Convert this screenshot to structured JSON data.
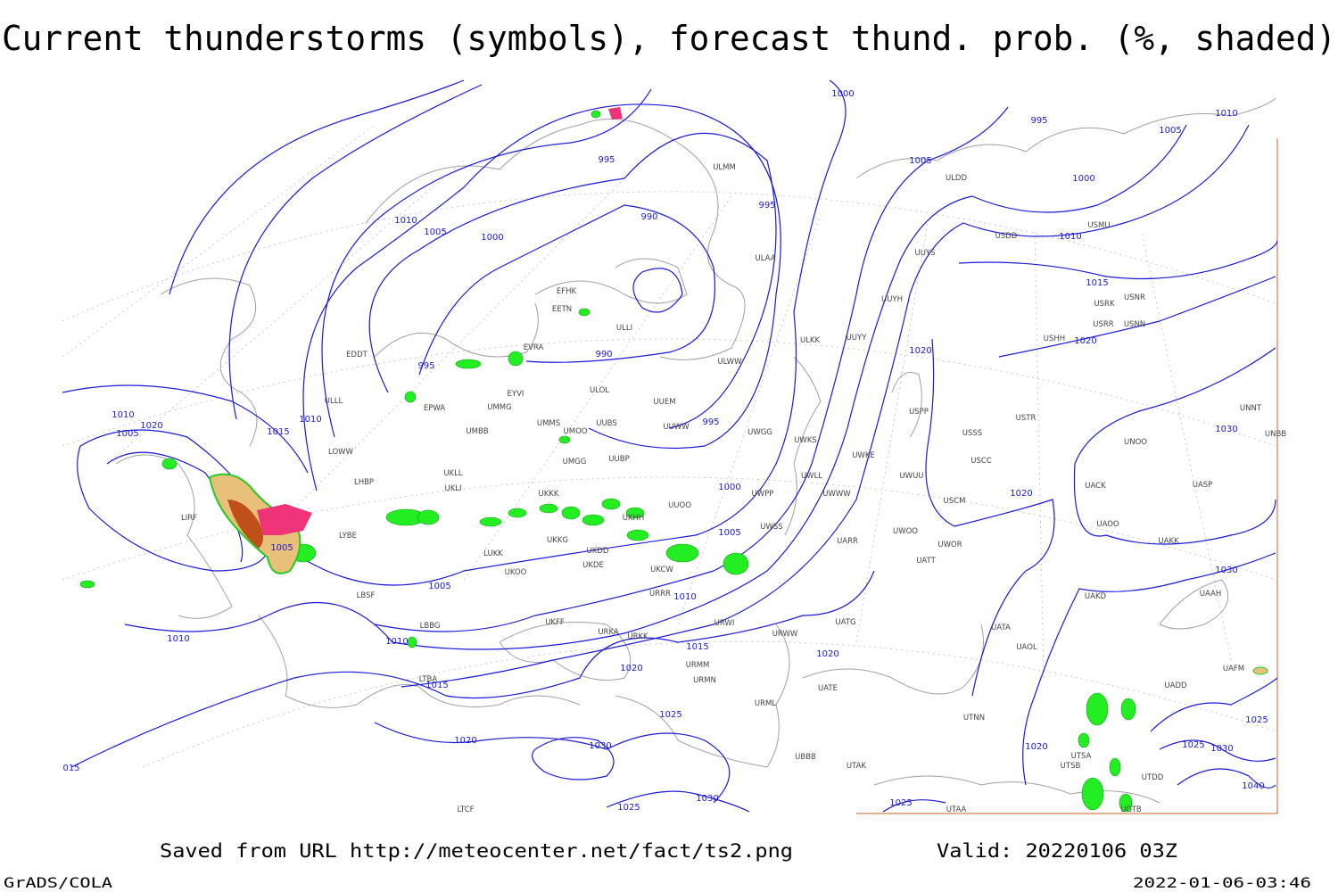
{
  "title": "Current thunderstorms (symbols), forecast thund. prob. (%, shaded)",
  "isobar_labels": [
    "1000",
    "995",
    "1010",
    "1005",
    "995",
    "1005",
    "1000",
    "1010",
    "1005",
    "1000",
    "995",
    "990",
    "1010",
    "1015",
    "1020",
    "1020",
    "995",
    "990",
    "995",
    "1010",
    "1020",
    "1005",
    "1015",
    "1010",
    "1000",
    "1020",
    "1030",
    "1005",
    "1005",
    "1005",
    "1010",
    "1030",
    "1010",
    "1010",
    "1015",
    "1020",
    "1015",
    "1020",
    "1025",
    "1020",
    "1030",
    "1020",
    "1025",
    "1030",
    "1030",
    "1025",
    "1025",
    "1025",
    "015",
    "1040"
  ],
  "stations": [
    "EFHK",
    "EETN",
    "ULLI",
    "EVRA",
    "ULOL",
    "UUEM",
    "EYVI",
    "UMMG",
    "EPWA",
    "UMMS",
    "UMOO",
    "UUBS",
    "UMBB",
    "UUWW",
    "UWGG",
    "UMGG",
    "UUBP",
    "UKLL",
    "UKLI",
    "LHBP",
    "LOWW",
    "UKKK",
    "UUOO",
    "UWPP",
    "UKHH",
    "UKKG",
    "UKDD",
    "UKOO",
    "UKDE",
    "LUKK",
    "LYBE",
    "LBSF",
    "UKCW",
    "URRR",
    "UKFF",
    "URKA",
    "URKK",
    "URWI",
    "URWW",
    "UATG",
    "UATT",
    "UARR",
    "UWOO",
    "UWOR",
    "UWUU",
    "UWKE",
    "UWKS",
    "UWLL",
    "UWWW",
    "UWSS",
    "ULMM",
    "ULDD",
    "ULAA",
    "USMU",
    "USDD",
    "UUYS",
    "UUYH",
    "UUYY",
    "ULWW",
    "ULKK",
    "USSS",
    "USCC",
    "USCM",
    "USPP",
    "USTR",
    "USHH",
    "USRR",
    "USNN",
    "USRK",
    "USNR",
    "UNOO",
    "UNNT",
    "UNBB",
    "UASP",
    "UACK",
    "UAOO",
    "UAKK",
    "UAAH",
    "UAKD",
    "UATA",
    "UAOL",
    "UADD",
    "UAFM",
    "UTNN",
    "UTSA",
    "UTSB",
    "UTDD",
    "UTAK",
    "UBBB",
    "URML",
    "UATE",
    "URMN",
    "URMM",
    "UTAA",
    "UGTB",
    "LTCF",
    "EDDT",
    "LBBG",
    "LTBA",
    "LIRF",
    "ULLL"
  ],
  "footer": {
    "saved": "Saved from URL http://meteocenter.net/fact/ts2.png",
    "valid": "Valid: 20220106 03Z"
  },
  "credit": "GrADS/COLA",
  "timestamp": "2022-01-06-03:46"
}
